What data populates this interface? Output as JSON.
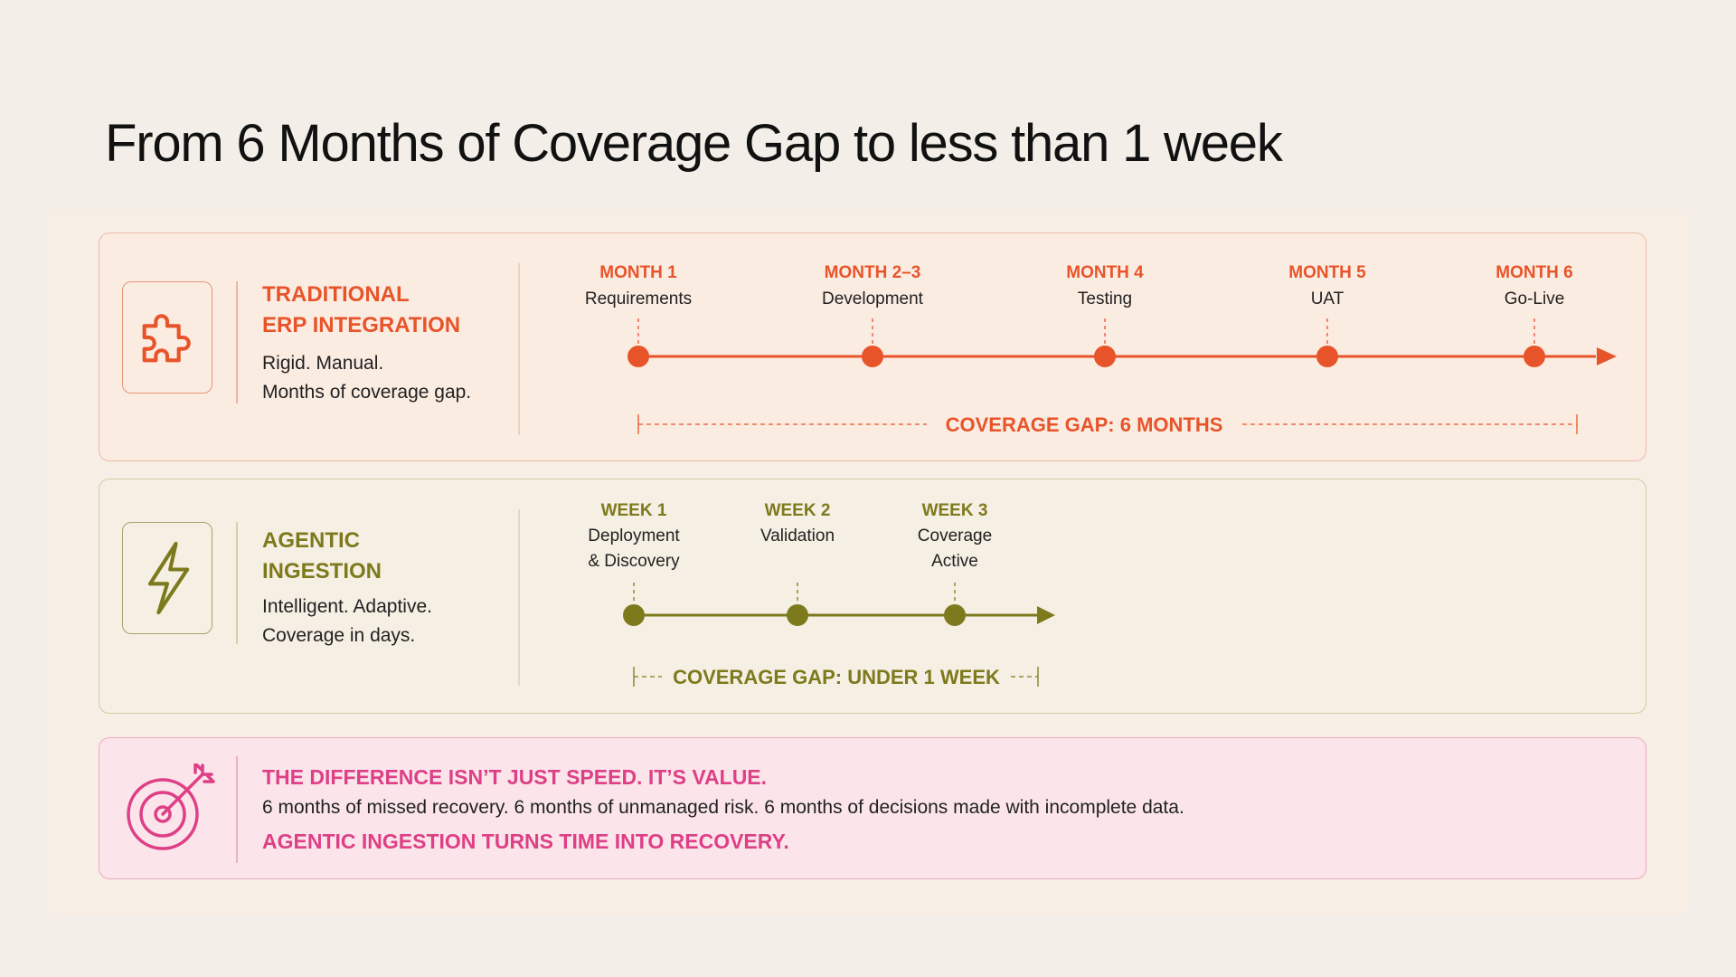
{
  "title": "From 6 Months of Coverage Gap to less than 1 week",
  "colors": {
    "traditional_accent": "#e8542a",
    "agentic_accent": "#7d7a1d",
    "value_accent": "#de3f86"
  },
  "traditional": {
    "icon": "puzzle-piece-icon",
    "heading_line1": "TRADITIONAL",
    "heading_line2": "ERP INTEGRATION",
    "desc_line1": "Rigid. Manual.",
    "desc_line2": "Months of coverage gap.",
    "milestones": [
      {
        "label": "MONTH 1",
        "sub": "Requirements"
      },
      {
        "label": "MONTH 2–3",
        "sub": "Development"
      },
      {
        "label": "MONTH 4",
        "sub": "Testing"
      },
      {
        "label": "MONTH 5",
        "sub": "UAT"
      },
      {
        "label": "MONTH 6",
        "sub": "Go-Live"
      }
    ],
    "gap_label": "COVERAGE GAP: 6 MONTHS"
  },
  "agentic": {
    "icon": "lightning-bolt-icon",
    "heading_line1": "AGENTIC",
    "heading_line2": "INGESTION",
    "desc_line1": "Intelligent. Adaptive.",
    "desc_line2": "Coverage in days.",
    "milestones": [
      {
        "label": "WEEK 1",
        "sub": [
          "Deployment",
          "& Discovery"
        ]
      },
      {
        "label": "WEEK 2",
        "sub": [
          "Validation"
        ]
      },
      {
        "label": "WEEK 3",
        "sub": [
          "Coverage",
          "Active"
        ]
      }
    ],
    "gap_label": "COVERAGE GAP: UNDER 1 WEEK"
  },
  "value": {
    "icon": "target-arrow-icon",
    "line1": "THE DIFFERENCE ISN’T JUST SPEED. IT’S VALUE.",
    "line2": "6 months of missed recovery. 6 months of unmanaged risk. 6 months of decisions made with incomplete data.",
    "line3": "AGENTIC INGESTION TURNS TIME INTO RECOVERY."
  }
}
